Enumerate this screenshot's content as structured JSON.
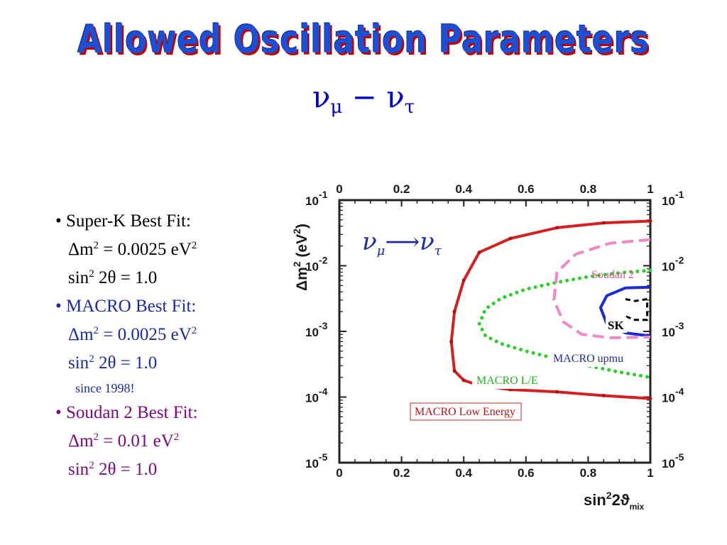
{
  "slide": {
    "title": "Allowed Oscillation Parameters",
    "subtitle_nu1": "ν",
    "subtitle_sub1": "μ",
    "subtitle_minus": " − ",
    "subtitle_nu2": "ν",
    "subtitle_sub2": "τ"
  },
  "bullets": [
    {
      "head": "• Super-K Best Fit:",
      "dm_pre": "Δm",
      "dm_exp": "2",
      "dm_val": " = 0.0025 eV",
      "dm_unit_exp": "2",
      "sin_pre": "sin",
      "sin_exp": "2",
      "sin_val": " 2θ = 1.0",
      "color": "#000000"
    },
    {
      "head": "• MACRO Best Fit:",
      "dm_pre": "Δm",
      "dm_exp": "2",
      "dm_val": " = 0.0025 eV",
      "dm_unit_exp": "2",
      "sin_pre": "sin",
      "sin_exp": "2",
      "sin_val": " 2θ = 1.0",
      "note": "since 1998!",
      "color": "#1a2aa8"
    },
    {
      "head": "• Soudan 2 Best Fit:",
      "dm_pre": "Δm",
      "dm_exp": "2",
      "dm_val": " = 0.01 eV",
      "dm_unit_exp": "2",
      "sin_pre": "sin",
      "sin_exp": "2",
      "sin_val": " 2θ = 1.0",
      "color": "#7a0a84"
    }
  ],
  "chart_data": {
    "type": "line",
    "x_scale": "linear",
    "y_scale": "log",
    "xlim": [
      0,
      1
    ],
    "ylim": [
      1e-05,
      0.1
    ],
    "x_ticks": [
      "0",
      "0.2",
      "0.4",
      "0.6",
      "0.8",
      "1"
    ],
    "y_tick_base": "10",
    "y_tick_exps": [
      "-1",
      "-2",
      "-3",
      "-4",
      "-5"
    ],
    "ylabel_main": "Δm",
    "ylabel_sup": "2",
    "ylabel_unit": "(eV",
    "ylabel_unit_sup": "2",
    "ylabel_close": ")",
    "xlabel_sin": "sin",
    "xlabel_sup": "2",
    "xlabel_rest": "2ϑ",
    "xlabel_sub": "mix",
    "annotation_nu": "ν",
    "annotation_nu_sub": "μ",
    "annotation_arrow": "⟶",
    "annotation_nu2": "ν",
    "annotation_nu2_sub": "τ",
    "grid": false,
    "series": [
      {
        "name": "MACRO Low Energy",
        "color": "#d42020",
        "style": "solid",
        "x": [
          1.0,
          0.85,
          0.7,
          0.55,
          0.45,
          0.4,
          0.37,
          0.36,
          0.37,
          0.4,
          0.45,
          0.55,
          0.7,
          0.85,
          1.0
        ],
        "y": [
          0.048,
          0.045,
          0.038,
          0.026,
          0.016,
          0.006,
          0.002,
          0.0007,
          0.00025,
          0.00018,
          0.00015,
          0.00013,
          0.00012,
          0.000105,
          9.5e-05
        ]
      },
      {
        "name": "MACRO L/E",
        "color": "#2ad02a",
        "style": "dotted",
        "x": [
          1.0,
          0.9,
          0.8,
          0.7,
          0.6,
          0.52,
          0.47,
          0.45,
          0.47,
          0.52,
          0.6,
          0.7,
          0.8,
          0.9,
          1.0
        ],
        "y": [
          0.0085,
          0.0078,
          0.0068,
          0.0056,
          0.0044,
          0.0032,
          0.0022,
          0.0013,
          0.00085,
          0.00065,
          0.0005,
          0.00038,
          0.0003,
          0.00024,
          0.0002
        ]
      },
      {
        "name": "MACRO upmu",
        "color": "#1a2ad6",
        "style": "solid",
        "x": [
          1.0,
          0.92,
          0.86,
          0.84,
          0.86,
          0.92,
          1.0
        ],
        "y": [
          0.0047,
          0.0046,
          0.0035,
          0.0023,
          0.0013,
          0.00095,
          0.00085
        ]
      },
      {
        "name": "Soudan 2",
        "color": "#f088c8",
        "style": "dashed",
        "x": [
          1.0,
          0.87,
          0.76,
          0.7,
          0.69,
          0.72,
          0.78,
          0.87,
          1.0
        ],
        "y": [
          0.025,
          0.022,
          0.015,
          0.008,
          0.003,
          0.0014,
          0.0009,
          0.0008,
          0.00082
        ]
      },
      {
        "name": "SK",
        "color": "#000000",
        "style": "dashed",
        "x": [
          0.92,
          0.95,
          0.99,
          0.99,
          0.95,
          0.92
        ],
        "y": [
          0.0031,
          0.0029,
          0.0031,
          0.0015,
          0.0015,
          0.0017
        ]
      }
    ],
    "labels": [
      "Soudan 2",
      "SK",
      "MACRO upmu",
      "MACRO L/E",
      "MACRO Low Energy"
    ],
    "label_colors": [
      "#e05090",
      "#000000",
      "#1a2aa8",
      "#22b022",
      "#c01010"
    ]
  }
}
